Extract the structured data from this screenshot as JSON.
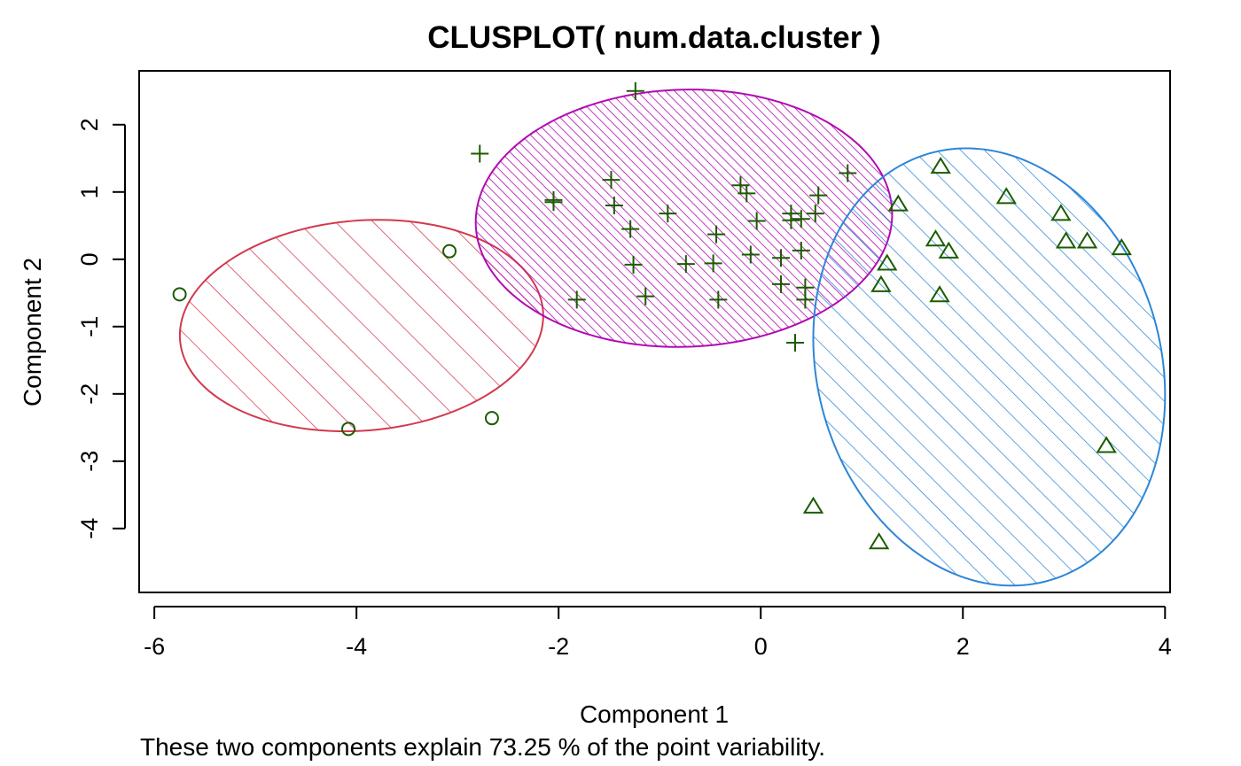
{
  "chart_data": {
    "type": "scatter",
    "title": "CLUSPLOT( num.data.cluster )",
    "xlabel": "Component 1",
    "ylabel": "Component 2",
    "subtitle": "These two components explain 73.25 % of the point variability.",
    "xlim": [
      -6.15,
      4.05
    ],
    "ylim": [
      -4.95,
      2.8
    ],
    "x_ticks": [
      -6,
      -4,
      -2,
      0,
      2,
      4
    ],
    "y_ticks": [
      2,
      1,
      0,
      -1,
      -2,
      -3,
      -4
    ],
    "grid": false,
    "legend": "none",
    "point_color": "#1a5c00",
    "clusters": [
      {
        "id": 1,
        "marker": "circle",
        "ellipse": {
          "cx": -3.95,
          "cy": -0.985,
          "rx": 1.82,
          "ry": 1.545,
          "angle_deg": 17.25
        },
        "ellipse_color": "#d2394e",
        "shading": "hatch-sparse",
        "points": [
          [
            -5.75,
            -0.52
          ],
          [
            -3.08,
            0.12
          ],
          [
            -4.08,
            -2.52
          ],
          [
            -2.66,
            -2.36
          ]
        ]
      },
      {
        "id": 2,
        "marker": "plus",
        "ellipse": {
          "cx": -0.76,
          "cy": 0.61,
          "rx": 2.066,
          "ry": 1.906,
          "angle_deg": 11.32
        },
        "ellipse_color": "#b10ab2",
        "shading": "hatch-dense",
        "points": [
          [
            -1.24,
            2.5
          ],
          [
            -2.78,
            1.57
          ],
          [
            -2.05,
            0.88
          ],
          [
            -2.05,
            0.85
          ],
          [
            -1.48,
            1.18
          ],
          [
            -1.45,
            0.8
          ],
          [
            -1.29,
            0.45
          ],
          [
            -0.92,
            0.68
          ],
          [
            -0.2,
            1.1
          ],
          [
            -0.14,
            0.98
          ],
          [
            -0.04,
            0.57
          ],
          [
            0.86,
            1.28
          ],
          [
            0.57,
            0.95
          ],
          [
            0.54,
            0.68
          ],
          [
            0.3,
            0.68
          ],
          [
            0.3,
            0.58
          ],
          [
            0.4,
            0.6
          ],
          [
            0.4,
            0.13
          ],
          [
            -0.44,
            0.37
          ],
          [
            -0.1,
            0.07
          ],
          [
            0.2,
            0.02
          ],
          [
            -1.26,
            -0.08
          ],
          [
            -0.74,
            -0.07
          ],
          [
            -0.47,
            -0.06
          ],
          [
            0.2,
            -0.37
          ],
          [
            0.44,
            -0.42
          ],
          [
            0.44,
            -0.6
          ],
          [
            -1.82,
            -0.6
          ],
          [
            -1.14,
            -0.55
          ],
          [
            -0.42,
            -0.6
          ],
          [
            0.34,
            -1.24
          ]
        ]
      },
      {
        "id": 3,
        "marker": "triangle",
        "ellipse": {
          "cx": 2.26,
          "cy": -1.6,
          "rx": 3.26,
          "ry": 1.72,
          "angle_deg": 95.5
        },
        "ellipse_color": "#2c86d8",
        "shading": "hatch-medium",
        "points": [
          [
            1.78,
            1.38
          ],
          [
            1.36,
            0.82
          ],
          [
            2.43,
            0.93
          ],
          [
            2.97,
            0.68
          ],
          [
            1.73,
            0.3
          ],
          [
            3.02,
            0.27
          ],
          [
            3.23,
            0.27
          ],
          [
            3.57,
            0.17
          ],
          [
            1.86,
            0.12
          ],
          [
            1.25,
            -0.06
          ],
          [
            1.19,
            -0.38
          ],
          [
            1.77,
            -0.53
          ],
          [
            3.42,
            -2.77
          ],
          [
            0.52,
            -3.67
          ],
          [
            1.17,
            -4.2
          ]
        ]
      }
    ]
  }
}
